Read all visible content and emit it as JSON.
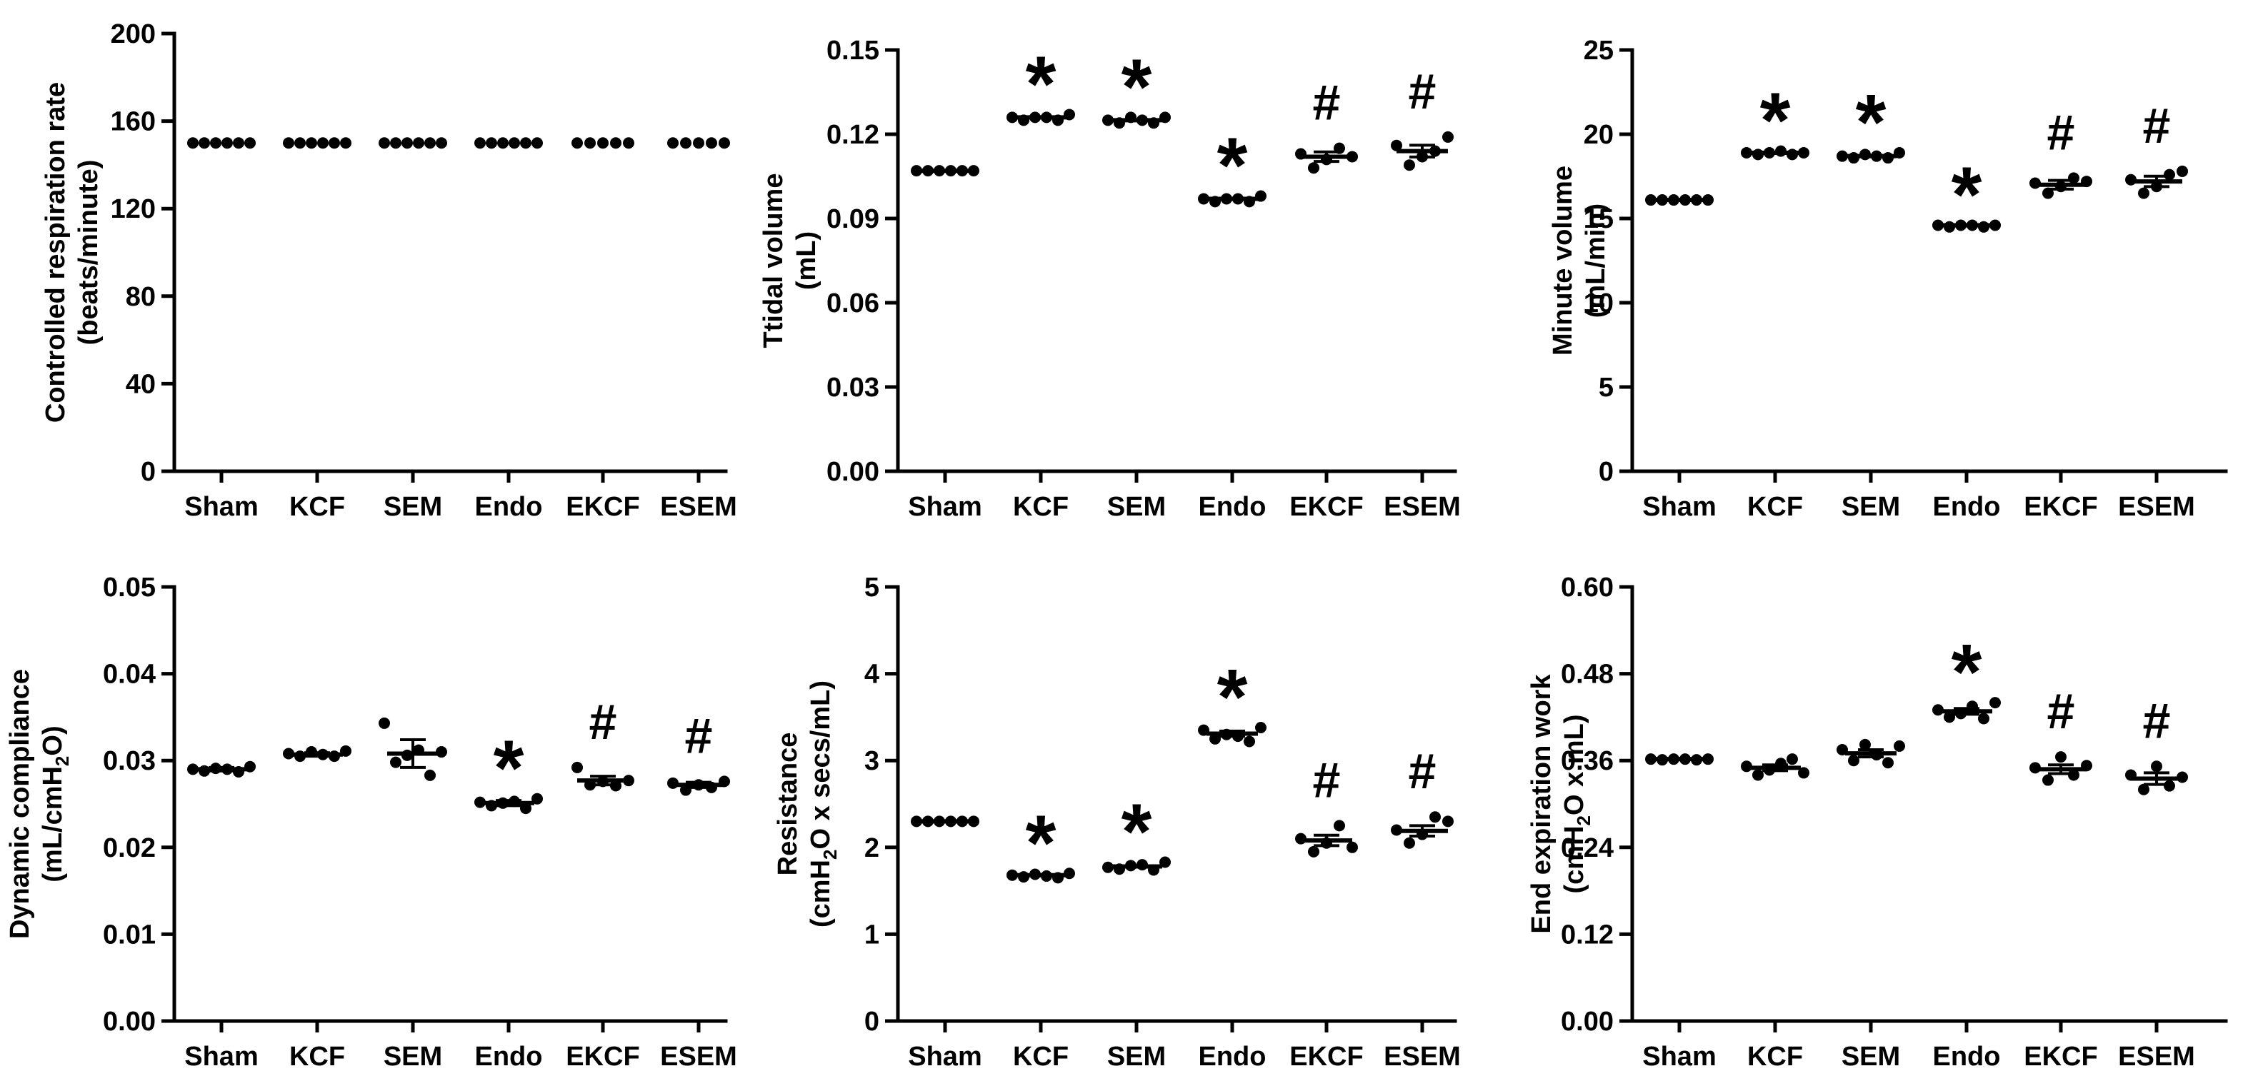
{
  "chart_data": [
    {
      "type": "scatter",
      "ylabel": [
        "Controlled respiration rate",
        "(beats/minute)"
      ],
      "ylabel_sub": [],
      "ylim": [
        0,
        200
      ],
      "yticks": [
        "0",
        "40",
        "80",
        "120",
        "160",
        "200"
      ],
      "categories": [
        "Sham",
        "KCF",
        "SEM",
        "Endo",
        "EKCF",
        "ESEM"
      ],
      "series": [
        {
          "category": "Sham",
          "points": [
            150,
            150,
            150,
            150,
            150,
            150
          ],
          "mean": 150,
          "sem": 0,
          "mark": ""
        },
        {
          "category": "KCF",
          "points": [
            150,
            150,
            150,
            150,
            150,
            150
          ],
          "mean": 150,
          "sem": 0,
          "mark": ""
        },
        {
          "category": "SEM",
          "points": [
            150,
            150,
            150,
            150,
            150,
            150
          ],
          "mean": 150,
          "sem": 0,
          "mark": ""
        },
        {
          "category": "Endo",
          "points": [
            150,
            150,
            150,
            150,
            150,
            150
          ],
          "mean": 150,
          "sem": 0,
          "mark": ""
        },
        {
          "category": "EKCF",
          "points": [
            150,
            150,
            150,
            150,
            150
          ],
          "mean": 150,
          "sem": 0,
          "mark": ""
        },
        {
          "category": "ESEM",
          "points": [
            150,
            150,
            150,
            150,
            150
          ],
          "mean": 150,
          "sem": 0,
          "mark": ""
        }
      ]
    },
    {
      "type": "scatter",
      "ylabel": [
        "Ttidal volume",
        "(mL)"
      ],
      "ylim": [
        0,
        0.15
      ],
      "yticks": [
        "0.00",
        "0.03",
        "0.06",
        "0.09",
        "0.12",
        "0.15"
      ],
      "categories": [
        "Sham",
        "KCF",
        "SEM",
        "Endo",
        "EKCF",
        "ESEM"
      ],
      "series": [
        {
          "category": "Sham",
          "points": [
            0.107,
            0.107,
            0.107,
            0.107,
            0.107,
            0.107
          ],
          "mean": 0.107,
          "sem": 0.0002,
          "mark": ""
        },
        {
          "category": "KCF",
          "points": [
            0.126,
            0.125,
            0.126,
            0.126,
            0.125,
            0.127
          ],
          "mean": 0.126,
          "sem": 0.0004,
          "mark": "*"
        },
        {
          "category": "SEM",
          "points": [
            0.125,
            0.124,
            0.126,
            0.125,
            0.124,
            0.126
          ],
          "mean": 0.125,
          "sem": 0.0004,
          "mark": "*"
        },
        {
          "category": "Endo",
          "points": [
            0.097,
            0.096,
            0.097,
            0.097,
            0.096,
            0.098
          ],
          "mean": 0.097,
          "sem": 0.0004,
          "mark": "*"
        },
        {
          "category": "EKCF",
          "points": [
            0.113,
            0.108,
            0.111,
            0.115,
            0.112
          ],
          "mean": 0.112,
          "sem": 0.0017,
          "mark": "#"
        },
        {
          "category": "ESEM",
          "points": [
            0.116,
            0.109,
            0.112,
            0.114,
            0.119
          ],
          "mean": 0.114,
          "sem": 0.0021,
          "mark": "#"
        }
      ]
    },
    {
      "type": "scatter",
      "ylabel": [
        "Minute volume",
        "(mL/min)"
      ],
      "ylim": [
        0,
        25
      ],
      "yticks": [
        "0",
        "5",
        "10",
        "15",
        "20",
        "25"
      ],
      "categories": [
        "Sham",
        "KCF",
        "SEM",
        "Endo",
        "EKCF",
        "ESEM"
      ],
      "series": [
        {
          "category": "Sham",
          "points": [
            16.1,
            16.1,
            16.1,
            16.1,
            16.1,
            16.1
          ],
          "mean": 16.1,
          "sem": 0.02,
          "mark": ""
        },
        {
          "category": "KCF",
          "points": [
            18.9,
            18.8,
            18.9,
            19.0,
            18.8,
            18.9
          ],
          "mean": 18.9,
          "sem": 0.05,
          "mark": "*"
        },
        {
          "category": "SEM",
          "points": [
            18.7,
            18.6,
            18.8,
            18.7,
            18.6,
            18.9
          ],
          "mean": 18.7,
          "sem": 0.06,
          "mark": "*"
        },
        {
          "category": "Endo",
          "points": [
            14.6,
            14.5,
            14.6,
            14.6,
            14.5,
            14.6
          ],
          "mean": 14.6,
          "sem": 0.03,
          "mark": "*"
        },
        {
          "category": "EKCF",
          "points": [
            17.1,
            16.5,
            16.9,
            17.4,
            17.2
          ],
          "mean": 17.0,
          "sem": 0.26,
          "mark": "#"
        },
        {
          "category": "ESEM",
          "points": [
            17.3,
            16.5,
            16.9,
            17.6,
            17.8
          ],
          "mean": 17.2,
          "sem": 0.31,
          "mark": "#"
        }
      ]
    },
    {
      "type": "scatter",
      "ylabel": [
        "Dynamic compliance",
        "(mL/cmH",
        "O)"
      ],
      "ylabel_sub_index": "2",
      "ylim": [
        0,
        0.05
      ],
      "yticks": [
        "0.00",
        "0.01",
        "0.02",
        "0.03",
        "0.04",
        "0.05"
      ],
      "categories": [
        "Sham",
        "KCF",
        "SEM",
        "Endo",
        "EKCF",
        "ESEM"
      ],
      "series": [
        {
          "category": "Sham",
          "points": [
            0.029,
            0.0288,
            0.0291,
            0.029,
            0.0287,
            0.0293
          ],
          "mean": 0.029,
          "sem": 0.0002,
          "mark": ""
        },
        {
          "category": "KCF",
          "points": [
            0.0308,
            0.0305,
            0.031,
            0.0307,
            0.0305,
            0.0311
          ],
          "mean": 0.0307,
          "sem": 0.0002,
          "mark": ""
        },
        {
          "category": "SEM",
          "points": [
            0.0343,
            0.0298,
            0.0306,
            0.0312,
            0.0283,
            0.031
          ],
          "mean": 0.0308,
          "sem": 0.0016,
          "mark": ""
        },
        {
          "category": "Endo",
          "points": [
            0.0252,
            0.0248,
            0.0251,
            0.0253,
            0.0245,
            0.0256
          ],
          "mean": 0.0251,
          "sem": 0.0003,
          "mark": "*"
        },
        {
          "category": "EKCF",
          "points": [
            0.0292,
            0.0272,
            0.0276,
            0.0271,
            0.0277
          ],
          "mean": 0.0277,
          "sem": 0.0005,
          "mark": "#"
        },
        {
          "category": "ESEM",
          "points": [
            0.0274,
            0.0266,
            0.0272,
            0.0269,
            0.0276
          ],
          "mean": 0.0272,
          "sem": 0.0003,
          "mark": "#"
        }
      ]
    },
    {
      "type": "scatter",
      "ylabel": [
        "Resistance",
        "(cmH",
        "O x secs/mL)"
      ],
      "ylabel_sub_index": "2",
      "ylim": [
        0,
        5
      ],
      "yticks": [
        "0",
        "1",
        "2",
        "3",
        "4",
        "5"
      ],
      "categories": [
        "Sham",
        "KCF",
        "SEM",
        "Endo",
        "EKCF",
        "ESEM"
      ],
      "series": [
        {
          "category": "Sham",
          "points": [
            2.3,
            2.3,
            2.3,
            2.3,
            2.3,
            2.3
          ],
          "mean": 2.3,
          "sem": 0.005,
          "mark": ""
        },
        {
          "category": "KCF",
          "points": [
            1.68,
            1.66,
            1.69,
            1.67,
            1.65,
            1.7
          ],
          "mean": 1.68,
          "sem": 0.01,
          "mark": "*"
        },
        {
          "category": "SEM",
          "points": [
            1.77,
            1.75,
            1.79,
            1.8,
            1.74,
            1.83
          ],
          "mean": 1.78,
          "sem": 0.015,
          "mark": "*"
        },
        {
          "category": "Endo",
          "points": [
            3.35,
            3.25,
            3.3,
            3.28,
            3.22,
            3.38
          ],
          "mean": 3.31,
          "sem": 0.03,
          "mark": "*"
        },
        {
          "category": "EKCF",
          "points": [
            2.1,
            1.95,
            2.05,
            2.25,
            2.0
          ],
          "mean": 2.08,
          "sem": 0.06,
          "mark": "#"
        },
        {
          "category": "ESEM",
          "points": [
            2.2,
            2.05,
            2.15,
            2.35,
            2.3
          ],
          "mean": 2.19,
          "sem": 0.06,
          "mark": "#"
        }
      ]
    },
    {
      "type": "scatter",
      "ylabel": [
        "End expiration work",
        "(cmH",
        "O x mL)"
      ],
      "ylabel_sub_index": "2",
      "ylim": [
        0,
        0.6
      ],
      "yticks": [
        "0.00",
        "0.12",
        "0.24",
        "0.36",
        "0.48",
        "0.60"
      ],
      "categories": [
        "Sham",
        "KCF",
        "SEM",
        "Endo",
        "EKCF",
        "ESEM"
      ],
      "series": [
        {
          "category": "Sham",
          "points": [
            0.362,
            0.361,
            0.362,
            0.362,
            0.361,
            0.362
          ],
          "mean": 0.362,
          "sem": 0.001,
          "mark": ""
        },
        {
          "category": "KCF",
          "points": [
            0.352,
            0.34,
            0.347,
            0.356,
            0.362,
            0.343
          ],
          "mean": 0.35,
          "sem": 0.004,
          "mark": ""
        },
        {
          "category": "SEM",
          "points": [
            0.375,
            0.36,
            0.382,
            0.368,
            0.357,
            0.38
          ],
          "mean": 0.37,
          "sem": 0.005,
          "mark": ""
        },
        {
          "category": "Endo",
          "points": [
            0.43,
            0.42,
            0.425,
            0.435,
            0.418,
            0.44
          ],
          "mean": 0.428,
          "sem": 0.004,
          "mark": "*"
        },
        {
          "category": "EKCF",
          "points": [
            0.35,
            0.333,
            0.365,
            0.34,
            0.353
          ],
          "mean": 0.348,
          "sem": 0.006,
          "mark": "#"
        },
        {
          "category": "ESEM",
          "points": [
            0.34,
            0.32,
            0.352,
            0.325,
            0.337
          ],
          "mean": 0.335,
          "sem": 0.008,
          "mark": "#"
        }
      ]
    }
  ]
}
